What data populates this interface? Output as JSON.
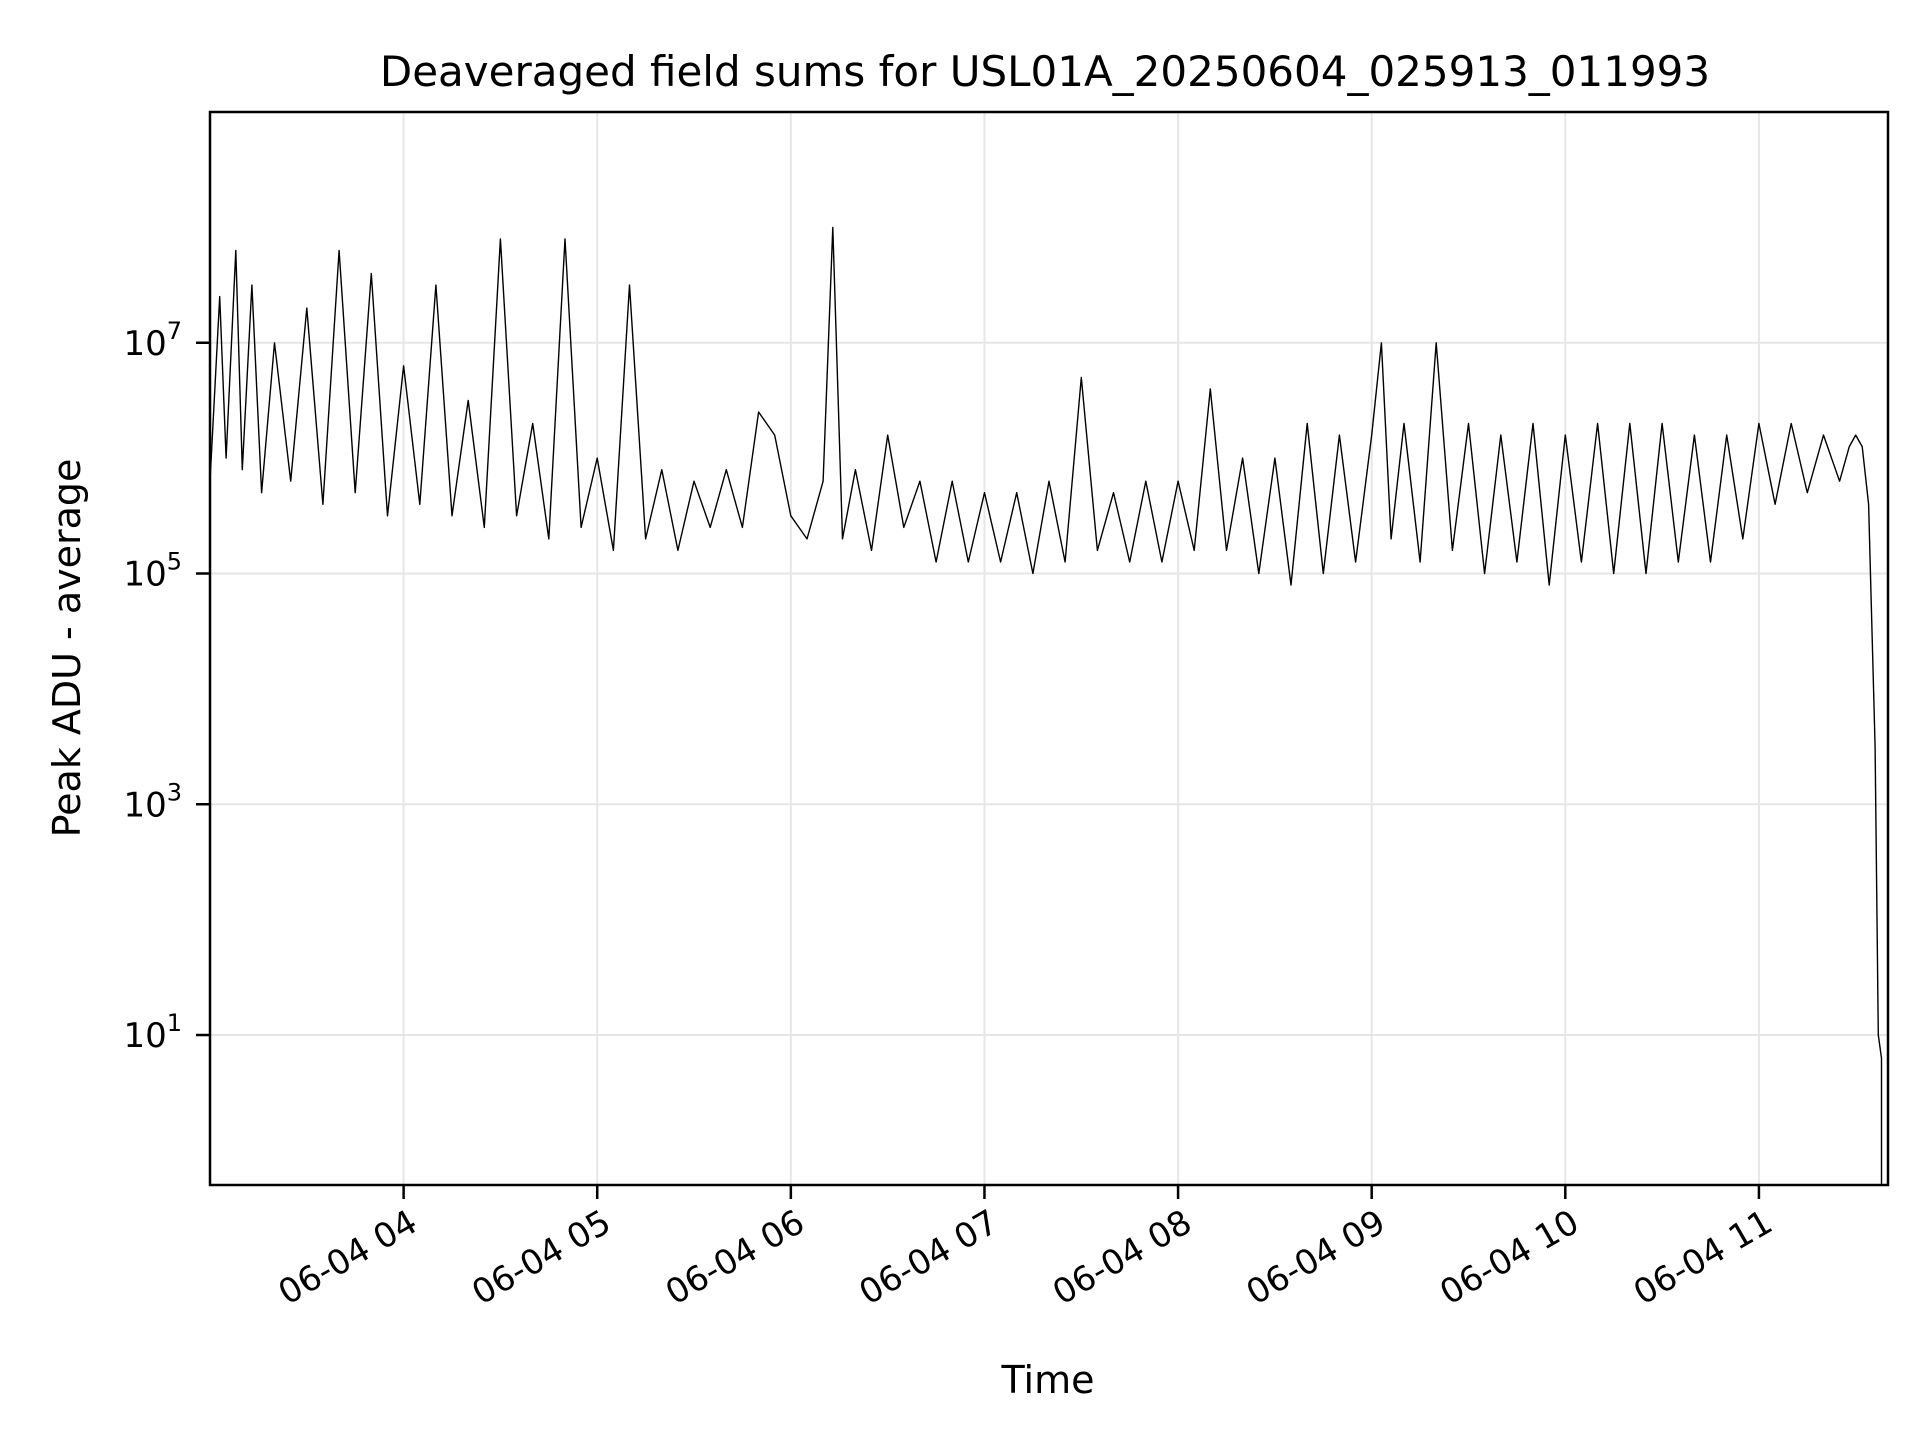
{
  "chart_data": {
    "type": "line",
    "title": "Deaveraged field sums for USL01A_20250604_025913_011993",
    "xlabel": "Time",
    "ylabel": "Peak ADU - average",
    "xscale": "time",
    "yscale": "log",
    "grid": true,
    "colors": {
      "series": "#000000",
      "grid": "#e6e6e6"
    },
    "xlim": [
      "2025-06-04T03:00",
      "2025-06-04T11:40"
    ],
    "ylim_exp": [
      -0.3,
      9.0
    ],
    "x_ticks": [
      {
        "t": "2025-06-04T04:00",
        "label": "06-04 04"
      },
      {
        "t": "2025-06-04T05:00",
        "label": "06-04 05"
      },
      {
        "t": "2025-06-04T06:00",
        "label": "06-04 06"
      },
      {
        "t": "2025-06-04T07:00",
        "label": "06-04 07"
      },
      {
        "t": "2025-06-04T08:00",
        "label": "06-04 08"
      },
      {
        "t": "2025-06-04T09:00",
        "label": "06-04 09"
      },
      {
        "t": "2025-06-04T10:00",
        "label": "06-04 10"
      },
      {
        "t": "2025-06-04T11:00",
        "label": "06-04 11"
      }
    ],
    "y_ticks": [
      {
        "exp": 1,
        "base": "10",
        "sup": "1"
      },
      {
        "exp": 3,
        "base": "10",
        "sup": "3"
      },
      {
        "exp": 5,
        "base": "10",
        "sup": "5"
      },
      {
        "exp": 7,
        "base": "10",
        "sup": "7"
      }
    ],
    "series": [
      {
        "points": [
          [
            "2025-06-04T03:00",
            5.8
          ],
          [
            "2025-06-04T03:03",
            7.4
          ],
          [
            "2025-06-04T03:05",
            6.0
          ],
          [
            "2025-06-04T03:08",
            7.8
          ],
          [
            "2025-06-04T03:10",
            5.9
          ],
          [
            "2025-06-04T03:13",
            7.5
          ],
          [
            "2025-06-04T03:16",
            5.7
          ],
          [
            "2025-06-04T03:20",
            7.0
          ],
          [
            "2025-06-04T03:25",
            5.8
          ],
          [
            "2025-06-04T03:30",
            7.3
          ],
          [
            "2025-06-04T03:35",
            5.6
          ],
          [
            "2025-06-04T03:40",
            7.8
          ],
          [
            "2025-06-04T03:45",
            5.7
          ],
          [
            "2025-06-04T03:50",
            7.6
          ],
          [
            "2025-06-04T03:55",
            5.5
          ],
          [
            "2025-06-04T04:00",
            6.8
          ],
          [
            "2025-06-04T04:05",
            5.6
          ],
          [
            "2025-06-04T04:10",
            7.5
          ],
          [
            "2025-06-04T04:15",
            5.5
          ],
          [
            "2025-06-04T04:20",
            6.5
          ],
          [
            "2025-06-04T04:25",
            5.4
          ],
          [
            "2025-06-04T04:30",
            7.9
          ],
          [
            "2025-06-04T04:35",
            5.5
          ],
          [
            "2025-06-04T04:40",
            6.3
          ],
          [
            "2025-06-04T04:45",
            5.3
          ],
          [
            "2025-06-04T04:50",
            7.9
          ],
          [
            "2025-06-04T04:55",
            5.4
          ],
          [
            "2025-06-04T05:00",
            6.0
          ],
          [
            "2025-06-04T05:05",
            5.2
          ],
          [
            "2025-06-04T05:10",
            7.5
          ],
          [
            "2025-06-04T05:15",
            5.3
          ],
          [
            "2025-06-04T05:20",
            5.9
          ],
          [
            "2025-06-04T05:25",
            5.2
          ],
          [
            "2025-06-04T05:30",
            5.8
          ],
          [
            "2025-06-04T05:35",
            5.4
          ],
          [
            "2025-06-04T05:40",
            5.9
          ],
          [
            "2025-06-04T05:45",
            5.4
          ],
          [
            "2025-06-04T05:50",
            6.4
          ],
          [
            "2025-06-04T05:55",
            6.2
          ],
          [
            "2025-06-04T06:00",
            5.5
          ],
          [
            "2025-06-04T06:05",
            5.3
          ],
          [
            "2025-06-04T06:10",
            5.8
          ],
          [
            "2025-06-04T06:13",
            8.0
          ],
          [
            "2025-06-04T06:16",
            5.3
          ],
          [
            "2025-06-04T06:20",
            5.9
          ],
          [
            "2025-06-04T06:25",
            5.2
          ],
          [
            "2025-06-04T06:30",
            6.2
          ],
          [
            "2025-06-04T06:35",
            5.4
          ],
          [
            "2025-06-04T06:40",
            5.8
          ],
          [
            "2025-06-04T06:45",
            5.1
          ],
          [
            "2025-06-04T06:50",
            5.8
          ],
          [
            "2025-06-04T06:55",
            5.1
          ],
          [
            "2025-06-04T07:00",
            5.7
          ],
          [
            "2025-06-04T07:05",
            5.1
          ],
          [
            "2025-06-04T07:10",
            5.7
          ],
          [
            "2025-06-04T07:15",
            5.0
          ],
          [
            "2025-06-04T07:20",
            5.8
          ],
          [
            "2025-06-04T07:25",
            5.1
          ],
          [
            "2025-06-04T07:30",
            6.7
          ],
          [
            "2025-06-04T07:35",
            5.2
          ],
          [
            "2025-06-04T07:40",
            5.7
          ],
          [
            "2025-06-04T07:45",
            5.1
          ],
          [
            "2025-06-04T07:50",
            5.8
          ],
          [
            "2025-06-04T07:55",
            5.1
          ],
          [
            "2025-06-04T08:00",
            5.8
          ],
          [
            "2025-06-04T08:05",
            5.2
          ],
          [
            "2025-06-04T08:10",
            6.6
          ],
          [
            "2025-06-04T08:15",
            5.2
          ],
          [
            "2025-06-04T08:20",
            6.0
          ],
          [
            "2025-06-04T08:25",
            5.0
          ],
          [
            "2025-06-04T08:30",
            6.0
          ],
          [
            "2025-06-04T08:35",
            4.9
          ],
          [
            "2025-06-04T08:40",
            6.3
          ],
          [
            "2025-06-04T08:45",
            5.0
          ],
          [
            "2025-06-04T08:50",
            6.2
          ],
          [
            "2025-06-04T08:55",
            5.1
          ],
          [
            "2025-06-04T09:00",
            6.2
          ],
          [
            "2025-06-04T09:03",
            7.0
          ],
          [
            "2025-06-04T09:06",
            5.3
          ],
          [
            "2025-06-04T09:10",
            6.3
          ],
          [
            "2025-06-04T09:15",
            5.1
          ],
          [
            "2025-06-04T09:20",
            7.0
          ],
          [
            "2025-06-04T09:25",
            5.2
          ],
          [
            "2025-06-04T09:30",
            6.3
          ],
          [
            "2025-06-04T09:35",
            5.0
          ],
          [
            "2025-06-04T09:40",
            6.2
          ],
          [
            "2025-06-04T09:45",
            5.1
          ],
          [
            "2025-06-04T09:50",
            6.3
          ],
          [
            "2025-06-04T09:55",
            4.9
          ],
          [
            "2025-06-04T10:00",
            6.2
          ],
          [
            "2025-06-04T10:05",
            5.1
          ],
          [
            "2025-06-04T10:10",
            6.3
          ],
          [
            "2025-06-04T10:15",
            5.0
          ],
          [
            "2025-06-04T10:20",
            6.3
          ],
          [
            "2025-06-04T10:25",
            5.0
          ],
          [
            "2025-06-04T10:30",
            6.3
          ],
          [
            "2025-06-04T10:35",
            5.1
          ],
          [
            "2025-06-04T10:40",
            6.2
          ],
          [
            "2025-06-04T10:45",
            5.1
          ],
          [
            "2025-06-04T10:50",
            6.2
          ],
          [
            "2025-06-04T10:55",
            5.3
          ],
          [
            "2025-06-04T11:00",
            6.3
          ],
          [
            "2025-06-04T11:05",
            5.6
          ],
          [
            "2025-06-04T11:10",
            6.3
          ],
          [
            "2025-06-04T11:15",
            5.7
          ],
          [
            "2025-06-04T11:20",
            6.2
          ],
          [
            "2025-06-04T11:25",
            5.8
          ],
          [
            "2025-06-04T11:28",
            6.1
          ],
          [
            "2025-06-04T11:30",
            6.2
          ],
          [
            "2025-06-04T11:32",
            6.1
          ],
          [
            "2025-06-04T11:34",
            5.6
          ],
          [
            "2025-06-04T11:36",
            3.5
          ],
          [
            "2025-06-04T11:37",
            1.0
          ],
          [
            "2025-06-04T11:38",
            0.8
          ],
          [
            "2025-06-04T11:38",
            -0.3
          ]
        ]
      }
    ]
  }
}
